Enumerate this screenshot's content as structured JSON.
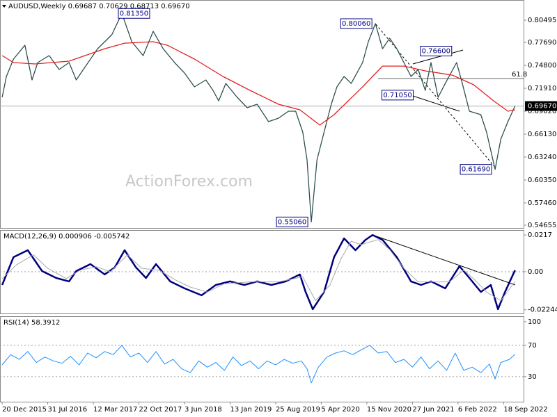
{
  "chart_data": [
    {
      "type": "line",
      "title": "AUDUSD,Weekly  0.69687 0.70629 0.68713 0.69670",
      "watermark": "ActionForex.com",
      "grid": false,
      "xlim": [
        -1.5,
        366
      ],
      "ylim": [
        0.543,
        0.8304
      ],
      "yticks": [
        0.80495,
        {
          "value": 0.7769,
          "label": "0.77690"
        },
        {
          "value": 0.748,
          "label": "0.74800"
        },
        {
          "value": 0.7191,
          "label": "0.71910"
        },
        {
          "value": 0.6902,
          "label": "0.69020"
        },
        {
          "value": 0.6613,
          "label": "0.66130"
        },
        {
          "value": 0.6324,
          "label": "0.63240"
        },
        {
          "value": 0.6035,
          "label": "0.60350"
        },
        {
          "value": 0.5746,
          "label": "0.57460"
        },
        0.54655
      ],
      "current_price": {
        "value": 0.6967,
        "label": "0.69670"
      },
      "fib_label": "61.8",
      "price_labels": [
        {
          "x": 84,
          "value": 0.8135,
          "label": "0.81350"
        },
        {
          "x": 262,
          "value": 0.8006,
          "label": "0.80060"
        },
        {
          "x": 318,
          "value": 0.766,
          "label": "0.76600"
        },
        {
          "x": 291,
          "value": 0.7105,
          "label": "0.71050"
        },
        {
          "x": 217,
          "value": 0.5506,
          "label": "0.55060"
        },
        {
          "x": 346,
          "value": 0.6169,
          "label": "0.61690"
        }
      ],
      "series": [
        {
          "color": "#2f4f4f",
          "x": [
            0,
            3,
            8,
            16,
            21,
            25,
            33,
            40,
            47,
            52,
            57,
            67,
            77,
            84,
            91,
            99,
            106,
            113,
            121,
            128,
            135,
            143,
            148,
            152,
            157,
            165,
            172,
            179,
            187,
            194,
            201,
            206,
            211,
            214,
            217,
            221,
            226,
            231,
            235,
            240,
            245,
            253,
            257,
            262,
            267,
            272,
            277,
            282,
            287,
            292,
            297,
            301,
            306,
            311,
            319,
            323,
            328,
            336,
            340,
            346,
            350,
            355,
            360
          ],
          "values": [
            0.7077,
            0.734,
            0.7559,
            0.7734,
            0.7296,
            0.7515,
            0.7603,
            0.7428,
            0.7515,
            0.7296,
            0.7428,
            0.769,
            0.7866,
            0.8135,
            0.7778,
            0.7603,
            0.7909,
            0.769,
            0.7515,
            0.7384,
            0.7209,
            0.7296,
            0.7165,
            0.7033,
            0.7252,
            0.7077,
            0.6946,
            0.699,
            0.6771,
            0.6814,
            0.6902,
            0.6902,
            0.6639,
            0.6289,
            0.5506,
            0.6289,
            0.6639,
            0.699,
            0.7209,
            0.734,
            0.7252,
            0.7515,
            0.7778,
            0.8006,
            0.769,
            0.7822,
            0.769,
            0.7515,
            0.734,
            0.7428,
            0.7165,
            0.7515,
            0.7077,
            0.7252,
            0.7515,
            0.7252,
            0.6902,
            0.6858,
            0.6639,
            0.6169,
            0.6551,
            0.6771,
            0.6967
          ]
        },
        {
          "color": "#e02020",
          "x": [
            0,
            8,
            23,
            47,
            72,
            86,
            106,
            116,
            135,
            155,
            174,
            194,
            209,
            223,
            233,
            253,
            267,
            282,
            297,
            316,
            331,
            345,
            355,
            360
          ],
          "values": [
            0.7603,
            0.7515,
            0.7498,
            0.7533,
            0.769,
            0.776,
            0.7778,
            0.7734,
            0.7559,
            0.734,
            0.7165,
            0.699,
            0.692,
            0.6727,
            0.6858,
            0.7209,
            0.7471,
            0.7471,
            0.741,
            0.7357,
            0.7235,
            0.7033,
            0.6902,
            0.692
          ]
        }
      ]
    },
    {
      "type": "line",
      "title": "MACD(12,26,9) 0.000906 -0.005742",
      "grid": true,
      "xlim": [
        -1.5,
        366
      ],
      "ylim": [
        -0.0246,
        0.0246
      ],
      "yticks": [
        0.0217,
        {
          "value": 0,
          "label": "0.00"
        },
        -0.022445
      ],
      "series": [
        {
          "color": "#000080",
          "width": 2.5,
          "x": [
            0,
            8,
            18,
            28,
            38,
            47,
            52,
            62,
            72,
            79,
            86,
            94,
            101,
            108,
            118,
            128,
            140,
            150,
            160,
            170,
            179,
            189,
            199,
            209,
            213,
            218,
            226,
            233,
            240,
            248,
            255,
            260,
            267,
            277,
            287,
            294,
            301,
            311,
            321,
            328,
            336,
            343,
            348,
            353,
            360
          ],
          "values": [
            -0.0078,
            0.0086,
            0.0127,
            0.0004,
            -0.0037,
            -0.0057,
            0.0004,
            0.0045,
            -0.0016,
            0.0025,
            0.0127,
            0.0025,
            -0.0037,
            0.0045,
            -0.0057,
            -0.0098,
            -0.0139,
            -0.0078,
            -0.0057,
            -0.0078,
            -0.0057,
            -0.0078,
            -0.0057,
            -0.0016,
            -0.0119,
            -0.0221,
            -0.0119,
            0.0086,
            0.0197,
            0.0127,
            0.0188,
            0.0217,
            0.0188,
            0.0086,
            -0.0057,
            -0.0078,
            -0.0057,
            -0.0098,
            0.0033,
            -0.0037,
            -0.0119,
            -0.0078,
            -0.0221,
            -0.0119,
            0.000906
          ]
        },
        {
          "color": "#a9a9a9",
          "width": 1,
          "x": [
            0,
            10,
            22,
            32,
            45,
            55,
            66,
            76,
            88,
            98,
            110,
            122,
            132,
            144,
            156,
            174,
            194,
            211,
            220,
            230,
            238,
            245,
            252,
            264,
            272,
            282,
            292,
            305,
            314,
            324,
            332,
            340,
            350,
            360
          ],
          "values": [
            -0.004,
            0.004,
            0.01,
            0.002,
            -0.004,
            0.001,
            0.003,
            0,
            0.01,
            0.002,
            0.001,
            -0.005,
            -0.009,
            -0.012,
            -0.007,
            -0.006,
            -0.006,
            -0.003,
            -0.017,
            -0.008,
            0.008,
            0.018,
            0.016,
            0.019,
            0.013,
            0.002,
            -0.006,
            -0.006,
            -0.006,
            0.001,
            -0.005,
            -0.012,
            -0.017,
            -0.005742
          ]
        }
      ]
    },
    {
      "type": "line",
      "title": "RSI(14) 58.3912",
      "grid": true,
      "xlim": [
        -1.5,
        366
      ],
      "ylim": [
        -2,
        107
      ],
      "yticks": [
        100,
        70,
        30
      ],
      "xticks": [
        {
          "value": 0,
          "label": "20 Dec 2015"
        },
        {
          "value": 32,
          "label": "31 Jul 2016"
        },
        {
          "value": 64,
          "label": "12 Mar 2017"
        },
        {
          "value": 96,
          "label": "22 Oct 2017"
        },
        {
          "value": 128,
          "label": "3 Jun 2018"
        },
        {
          "value": 160,
          "label": "13 Jan 2019"
        },
        {
          "value": 192,
          "label": "25 Aug 2019"
        },
        {
          "value": 224,
          "label": "5 Apr 2020"
        },
        {
          "value": 256,
          "label": "15 Nov 2020"
        },
        {
          "value": 288,
          "label": "27 Jun 2021"
        },
        {
          "value": 320,
          "label": "6 Feb 2022"
        },
        {
          "value": 352,
          "label": "18 Sep 2022"
        }
      ],
      "series": [
        {
          "color": "#1e90ff",
          "width": 1,
          "x": [
            0,
            6,
            12,
            18,
            24,
            30,
            36,
            42,
            48,
            54,
            60,
            66,
            72,
            78,
            84,
            90,
            96,
            102,
            108,
            114,
            120,
            126,
            132,
            138,
            144,
            150,
            156,
            162,
            168,
            174,
            180,
            186,
            192,
            198,
            204,
            210,
            214,
            217,
            222,
            228,
            234,
            240,
            246,
            252,
            258,
            264,
            270,
            276,
            282,
            288,
            294,
            300,
            306,
            312,
            318,
            324,
            330,
            336,
            342,
            346,
            350,
            356,
            360
          ],
          "values": [
            45,
            58,
            52,
            62,
            48,
            55,
            50,
            47,
            56,
            45,
            60,
            54,
            62,
            58,
            70,
            55,
            60,
            48,
            62,
            46,
            52,
            40,
            35,
            50,
            42,
            48,
            38,
            55,
            44,
            50,
            40,
            50,
            45,
            52,
            47,
            50,
            40,
            22,
            42,
            55,
            60,
            63,
            58,
            64,
            70,
            60,
            62,
            48,
            52,
            42,
            55,
            40,
            50,
            38,
            60,
            38,
            42,
            35,
            46,
            27,
            48,
            52,
            58.3912
          ]
        }
      ]
    }
  ]
}
